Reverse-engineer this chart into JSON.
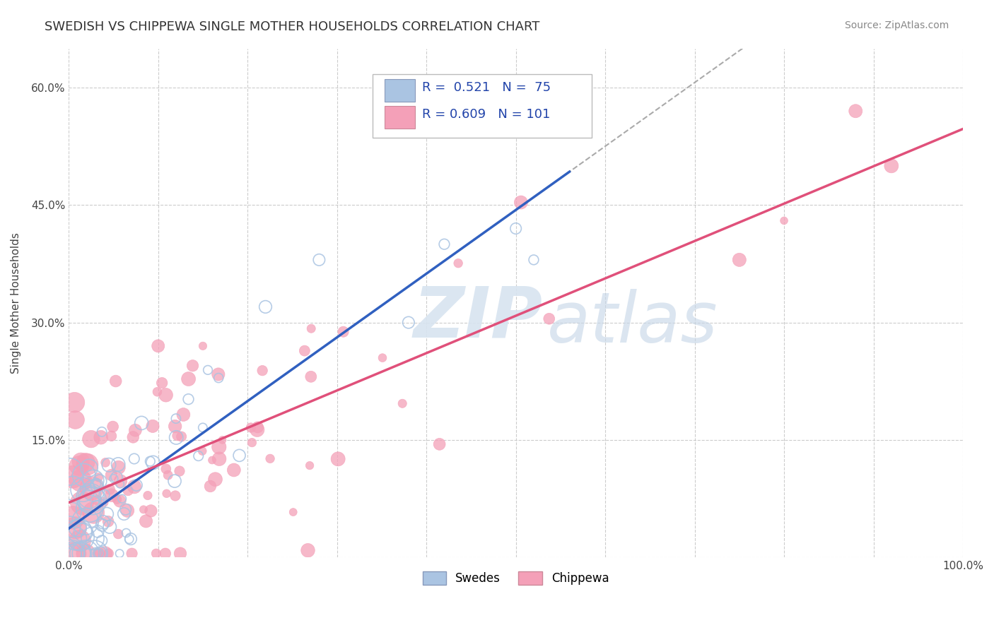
{
  "title": "SWEDISH VS CHIPPEWA SINGLE MOTHER HOUSEHOLDS CORRELATION CHART",
  "source": "Source: ZipAtlas.com",
  "ylabel": "Single Mother Households",
  "xlim": [
    0,
    1.0
  ],
  "ylim": [
    0,
    0.65
  ],
  "xticks": [
    0.0,
    0.1,
    0.2,
    0.3,
    0.4,
    0.5,
    0.6,
    0.7,
    0.8,
    0.9,
    1.0
  ],
  "xticklabels": [
    "0.0%",
    "",
    "",
    "",
    "",
    "",
    "",
    "",
    "",
    "",
    "100.0%"
  ],
  "yticks": [
    0.0,
    0.15,
    0.3,
    0.45,
    0.6
  ],
  "yticklabels": [
    "",
    "15.0%",
    "30.0%",
    "45.0%",
    "60.0%"
  ],
  "legend_swedes": "R =  0.521   N =  75",
  "legend_chippewa": "R = 0.609   N = 101",
  "swedes_color": "#aac4e2",
  "chippewa_color": "#f4a0b8",
  "swedes_line_color": "#3060c0",
  "chippewa_line_color": "#e0507a",
  "swedes_R": 0.521,
  "chippewa_R": 0.609,
  "swedes_N": 75,
  "chippewa_N": 101,
  "background_color": "#ffffff",
  "grid_color": "#cccccc",
  "watermark_zip": "ZIP",
  "watermark_atlas": "atlas",
  "title_fontsize": 13,
  "axis_label_fontsize": 11,
  "tick_fontsize": 11,
  "legend_fontsize": 13,
  "source_fontsize": 10,
  "legend_color": "#2244aa"
}
